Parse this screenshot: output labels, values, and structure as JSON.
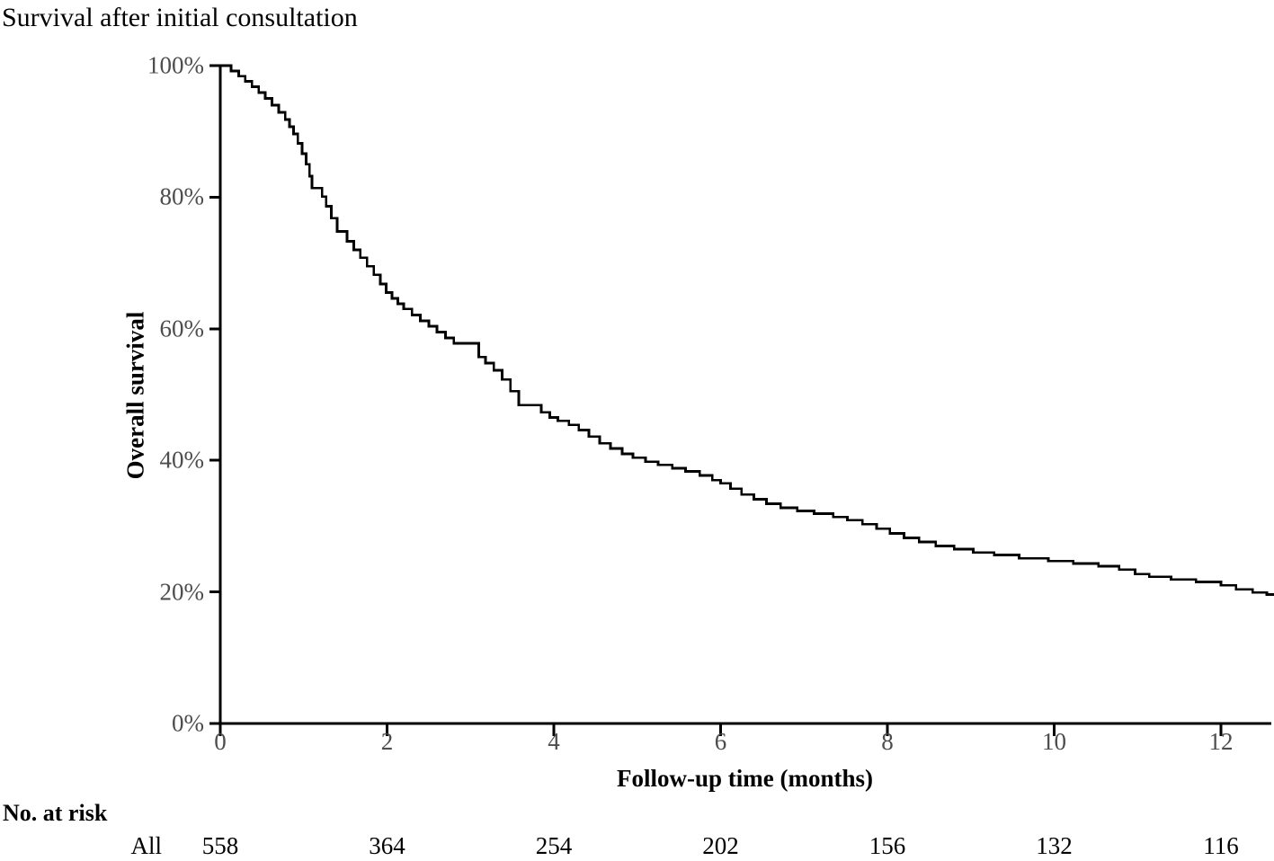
{
  "title": "Survival after initial consultation",
  "chart": {
    "ylabel": "Overall survival",
    "xlabel": "Follow-up time (months)",
    "risk_table": {
      "header": "No. at risk",
      "row_label": "All"
    }
  },
  "colors": {
    "curve": "#000000",
    "axis": "#000000",
    "tick_label": "#4d4d4d",
    "text": "#000000",
    "background": "#ffffff"
  },
  "chart_data": {
    "type": "line",
    "subtype": "kaplan-meier-step",
    "title": "Survival after initial consultation",
    "xlabel": "Follow-up time (months)",
    "ylabel": "Overall survival",
    "xlim": [
      0,
      12.7
    ],
    "ylim": [
      0,
      100
    ],
    "x_ticks": [
      0,
      2,
      4,
      6,
      8,
      10,
      12
    ],
    "x_tick_labels": [
      "0",
      "2",
      "4",
      "6",
      "8",
      "10",
      "12"
    ],
    "y_ticks": [
      0,
      20,
      40,
      60,
      80,
      100
    ],
    "y_tick_labels": [
      "0%",
      "20%",
      "40%",
      "60%",
      "80%",
      "100%"
    ],
    "grid": false,
    "legend_position": "none",
    "series": [
      {
        "name": "All",
        "color": "#000000",
        "points_t_pct": [
          [
            0,
            100
          ],
          [
            0.13,
            99.2
          ],
          [
            0.22,
            98.4
          ],
          [
            0.3,
            97.6
          ],
          [
            0.38,
            96.8
          ],
          [
            0.46,
            95.9
          ],
          [
            0.54,
            95.0
          ],
          [
            0.62,
            94.0
          ],
          [
            0.7,
            92.9
          ],
          [
            0.78,
            91.8
          ],
          [
            0.83,
            90.7
          ],
          [
            0.88,
            89.6
          ],
          [
            0.93,
            88.2
          ],
          [
            0.98,
            86.6
          ],
          [
            1.03,
            85.0
          ],
          [
            1.07,
            83.2
          ],
          [
            1.1,
            81.4
          ],
          [
            1.22,
            80.1
          ],
          [
            1.27,
            78.6
          ],
          [
            1.33,
            76.8
          ],
          [
            1.4,
            74.8
          ],
          [
            1.52,
            73.3
          ],
          [
            1.6,
            72.0
          ],
          [
            1.68,
            70.8
          ],
          [
            1.76,
            69.5
          ],
          [
            1.84,
            68.2
          ],
          [
            1.92,
            66.8
          ],
          [
            1.99,
            65.5
          ],
          [
            2.06,
            64.6
          ],
          [
            2.13,
            63.8
          ],
          [
            2.2,
            63.0
          ],
          [
            2.3,
            62.1
          ],
          [
            2.4,
            61.2
          ],
          [
            2.5,
            60.4
          ],
          [
            2.6,
            59.5
          ],
          [
            2.7,
            58.6
          ],
          [
            2.8,
            57.8
          ],
          [
            3.1,
            55.7
          ],
          [
            3.18,
            54.8
          ],
          [
            3.28,
            53.7
          ],
          [
            3.38,
            52.3
          ],
          [
            3.48,
            50.5
          ],
          [
            3.58,
            48.4
          ],
          [
            3.85,
            47.3
          ],
          [
            3.95,
            46.5
          ],
          [
            4.05,
            46.0
          ],
          [
            4.18,
            45.4
          ],
          [
            4.3,
            44.6
          ],
          [
            4.42,
            43.6
          ],
          [
            4.55,
            42.6
          ],
          [
            4.68,
            41.8
          ],
          [
            4.82,
            41.0
          ],
          [
            4.95,
            40.4
          ],
          [
            5.1,
            39.8
          ],
          [
            5.25,
            39.3
          ],
          [
            5.42,
            38.8
          ],
          [
            5.58,
            38.3
          ],
          [
            5.75,
            37.7
          ],
          [
            5.9,
            37.0
          ],
          [
            6.0,
            36.5
          ],
          [
            6.12,
            35.7
          ],
          [
            6.25,
            34.8
          ],
          [
            6.4,
            34.1
          ],
          [
            6.55,
            33.4
          ],
          [
            6.72,
            32.8
          ],
          [
            6.92,
            32.3
          ],
          [
            7.12,
            31.9
          ],
          [
            7.35,
            31.4
          ],
          [
            7.52,
            30.9
          ],
          [
            7.7,
            30.3
          ],
          [
            7.87,
            29.6
          ],
          [
            8.03,
            28.9
          ],
          [
            8.2,
            28.2
          ],
          [
            8.38,
            27.6
          ],
          [
            8.58,
            27.0
          ],
          [
            8.8,
            26.5
          ],
          [
            9.03,
            26.0
          ],
          [
            9.28,
            25.6
          ],
          [
            9.58,
            25.1
          ],
          [
            9.93,
            24.7
          ],
          [
            10.23,
            24.3
          ],
          [
            10.53,
            23.9
          ],
          [
            10.78,
            23.4
          ],
          [
            10.97,
            22.7
          ],
          [
            11.14,
            22.3
          ],
          [
            11.4,
            21.9
          ],
          [
            11.7,
            21.5
          ],
          [
            12.0,
            21.0
          ],
          [
            12.18,
            20.4
          ],
          [
            12.38,
            19.9
          ],
          [
            12.55,
            19.6
          ],
          [
            12.62,
            19.4
          ]
        ]
      }
    ],
    "at_risk": {
      "header": "No. at risk",
      "row_label": "All",
      "times": [
        0,
        2,
        4,
        6,
        8,
        10,
        12
      ],
      "counts": [
        "558",
        "364",
        "254",
        "202",
        "156",
        "132",
        "116"
      ]
    }
  }
}
